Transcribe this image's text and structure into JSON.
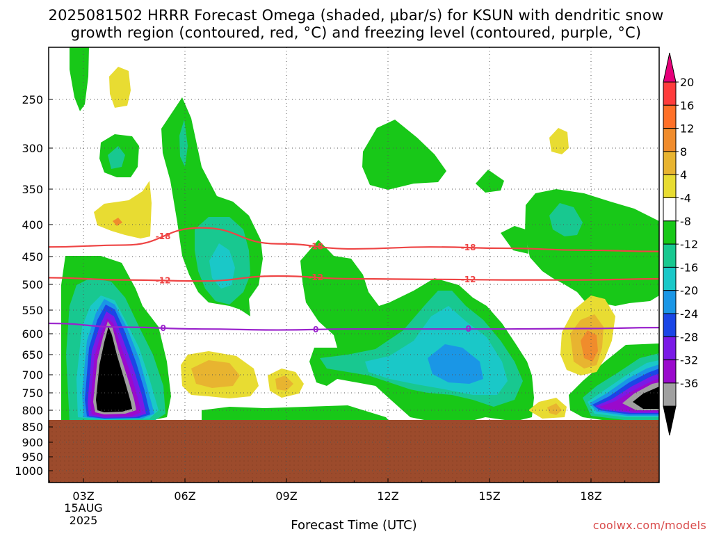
{
  "title_line1": "2025081502 HRRR Forecast Omega (shaded, μbar/s) for KSUN with dendritic snow",
  "title_line2": "growth region (contoured, red, °C) and freezing level (contoured, purple, °C)",
  "xlabel": "Forecast Time (UTC)",
  "credit": "coolwx.com/models",
  "chart_data": {
    "type": "heatmap",
    "x_ticks": [
      "03Z",
      "06Z",
      "09Z",
      "12Z",
      "15Z",
      "18Z"
    ],
    "x_tick_date": "15AUG",
    "x_tick_year": "2025",
    "y_ticks": [
      "250",
      "300",
      "350",
      "400",
      "450",
      "500",
      "550",
      "600",
      "650",
      "700",
      "750",
      "800",
      "850",
      "900",
      "950",
      "1000"
    ],
    "y_values_hpa": [
      250,
      300,
      350,
      400,
      450,
      500,
      550,
      600,
      650,
      700,
      750,
      800,
      850,
      900,
      950,
      1000
    ],
    "y_axis": "pressure (hPa), reversed, log-like",
    "grid": true,
    "colorbar": {
      "labels": [
        "20",
        "16",
        "12",
        "8",
        "4",
        "-4",
        "-8",
        "-12",
        "-16",
        "-20",
        "-24",
        "-28",
        "-32",
        "-36"
      ],
      "colors": [
        "#ff3c3c",
        "#ff7028",
        "#f08c2c",
        "#e8b430",
        "#e8dc32",
        "#ffffff",
        "#18c818",
        "#18c890",
        "#1ac8c8",
        "#1a96e6",
        "#1a46e6",
        "#7a1ae6",
        "#9a0acc",
        "#a0a0a0",
        "#000000"
      ],
      "top_color": "#e6007a"
    },
    "contours": [
      {
        "label": "-18",
        "color": "#ee4444",
        "pressure_hpa": [
          435,
          432,
          405,
          430,
          438,
          435,
          437,
          440,
          442
        ]
      },
      {
        "label": "-12",
        "color": "#ee4444",
        "pressure_hpa": [
          488,
          492,
          494,
          485,
          490,
          491,
          492,
          492,
          490
        ]
      },
      {
        "label": "0",
        "color": "#9a22cc",
        "pressure_hpa": [
          578,
          586,
          590,
          592,
          590,
          590,
          590,
          589,
          587
        ]
      }
    ],
    "terrain_below_hpa": 830,
    "terrain_color": "#9c4b2c",
    "colors": {
      "freezing_level": "#9a22cc",
      "dgz": "#ee4444",
      "credit": "#d94a4a"
    }
  }
}
